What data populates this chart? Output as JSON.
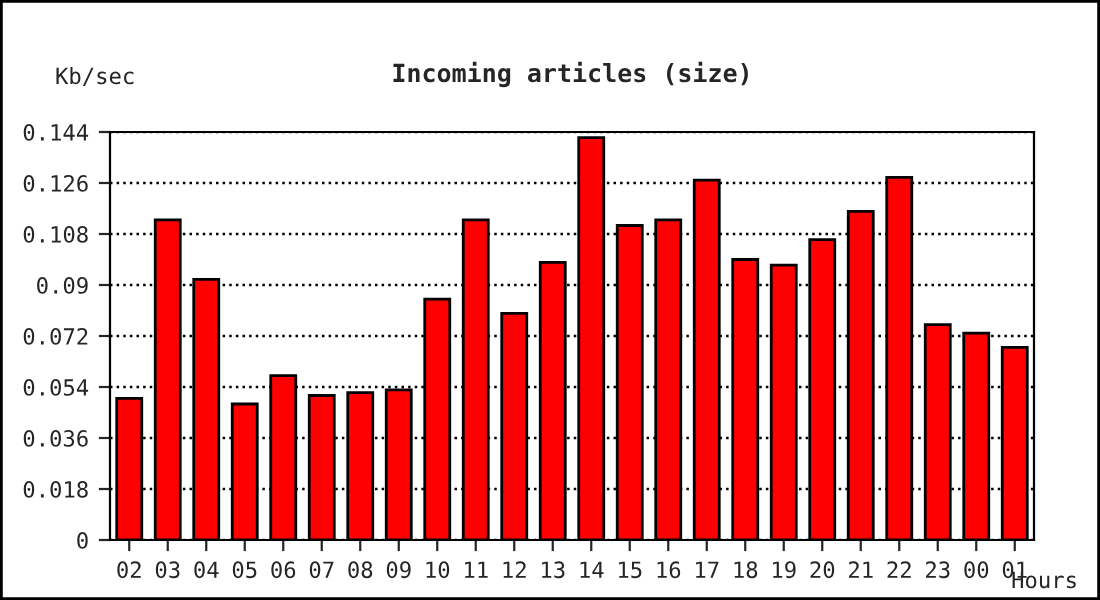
{
  "chart_data": {
    "type": "bar",
    "title": "Incoming articles (size)",
    "xlabel": "Hours",
    "ylabel": "Kb/sec",
    "categories": [
      "02",
      "03",
      "04",
      "05",
      "06",
      "07",
      "08",
      "09",
      "10",
      "11",
      "12",
      "13",
      "14",
      "15",
      "16",
      "17",
      "18",
      "19",
      "20",
      "21",
      "22",
      "23",
      "00",
      "01"
    ],
    "values": [
      0.05,
      0.113,
      0.092,
      0.048,
      0.058,
      0.051,
      0.052,
      0.053,
      0.085,
      0.113,
      0.08,
      0.098,
      0.142,
      0.111,
      0.113,
      0.127,
      0.099,
      0.097,
      0.106,
      0.116,
      0.128,
      0.076,
      0.073,
      0.068
    ],
    "color": "#ff0000",
    "ylim": [
      0,
      0.144
    ],
    "yticks": [
      0,
      0.018,
      0.036,
      0.054,
      0.072,
      0.09,
      0.108,
      0.126,
      0.144
    ],
    "grid": "y",
    "line_style": "dotted"
  }
}
